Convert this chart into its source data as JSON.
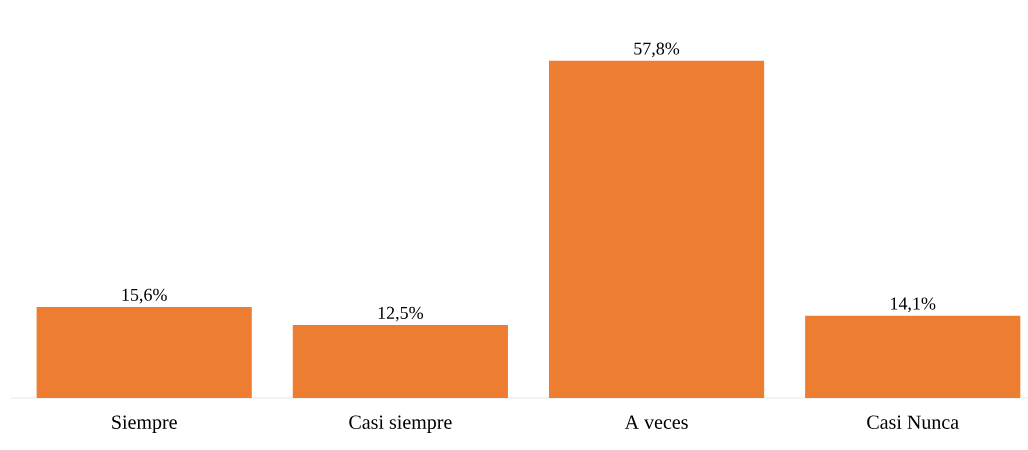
{
  "chart_data": {
    "type": "bar",
    "categories": [
      "Siempre",
      "Casi siempre",
      "A veces",
      "Casi Nunca"
    ],
    "values": [
      15.6,
      12.5,
      57.8,
      14.1
    ],
    "value_labels": [
      "15,6%",
      "12,5%",
      "57,8%",
      "14,1%"
    ],
    "color": "#ed7d31"
  }
}
